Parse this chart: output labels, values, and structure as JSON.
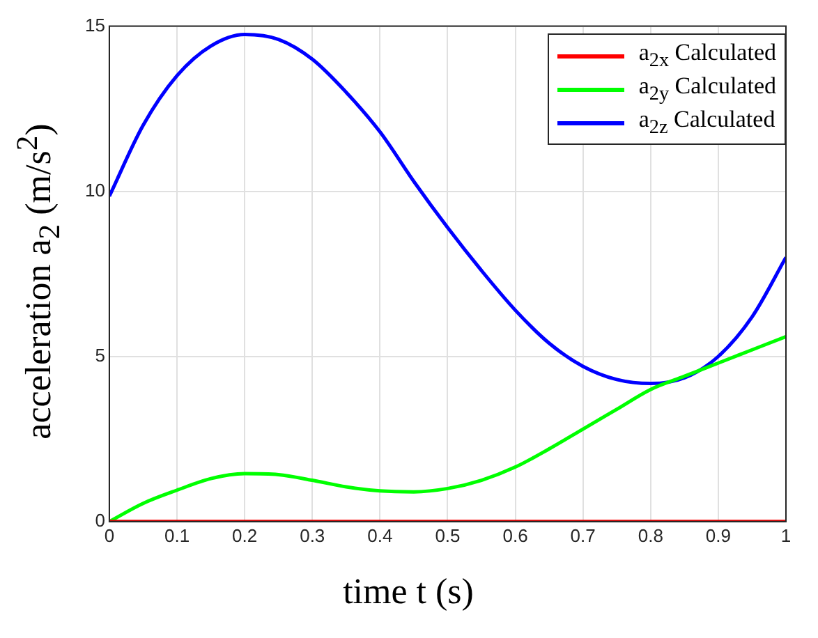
{
  "chart_data": {
    "type": "line",
    "xlabel": "time t (s)",
    "ylabel": "acceleration a$_{2}$ (m/s$^{2}$)",
    "x": [
      0,
      0.05,
      0.1,
      0.15,
      0.2,
      0.25,
      0.3,
      0.35,
      0.4,
      0.45,
      0.5,
      0.55,
      0.6,
      0.65,
      0.7,
      0.75,
      0.8,
      0.85,
      0.9,
      0.95,
      1
    ],
    "series": [
      {
        "name": "a$_{2x}$ Calculated",
        "color": "#ff0000",
        "values": [
          0,
          0,
          0,
          0,
          0,
          0,
          0,
          0,
          0,
          0,
          0,
          0,
          0,
          0,
          0,
          0,
          0,
          0,
          0,
          0,
          0
        ]
      },
      {
        "name": "a$_{2y}$ Calculated",
        "color": "#00ff00",
        "values": [
          0,
          0.55,
          0.95,
          1.3,
          1.45,
          1.42,
          1.25,
          1.05,
          0.93,
          0.9,
          1.0,
          1.25,
          1.65,
          2.2,
          2.8,
          3.4,
          4.0,
          4.4,
          4.8,
          5.2,
          5.6
        ]
      },
      {
        "name": "a$_{2z}$ Calculated",
        "color": "#0000ff",
        "values": [
          9.85,
          12.0,
          13.5,
          14.4,
          14.75,
          14.6,
          14.0,
          13.0,
          11.8,
          10.3,
          8.9,
          7.6,
          6.4,
          5.4,
          4.7,
          4.3,
          4.18,
          4.35,
          5.0,
          6.2,
          8.0
        ]
      }
    ],
    "xlim": [
      0,
      1
    ],
    "xticks": [
      0,
      0.1,
      0.2,
      0.3,
      0.4,
      0.5,
      0.6,
      0.7,
      0.8,
      0.9,
      1
    ],
    "ylim": [
      0,
      15
    ],
    "yticks": [
      0,
      5,
      10,
      15
    ],
    "grid": true,
    "legend": "top right",
    "marker": "none",
    "line_style": "solid"
  }
}
